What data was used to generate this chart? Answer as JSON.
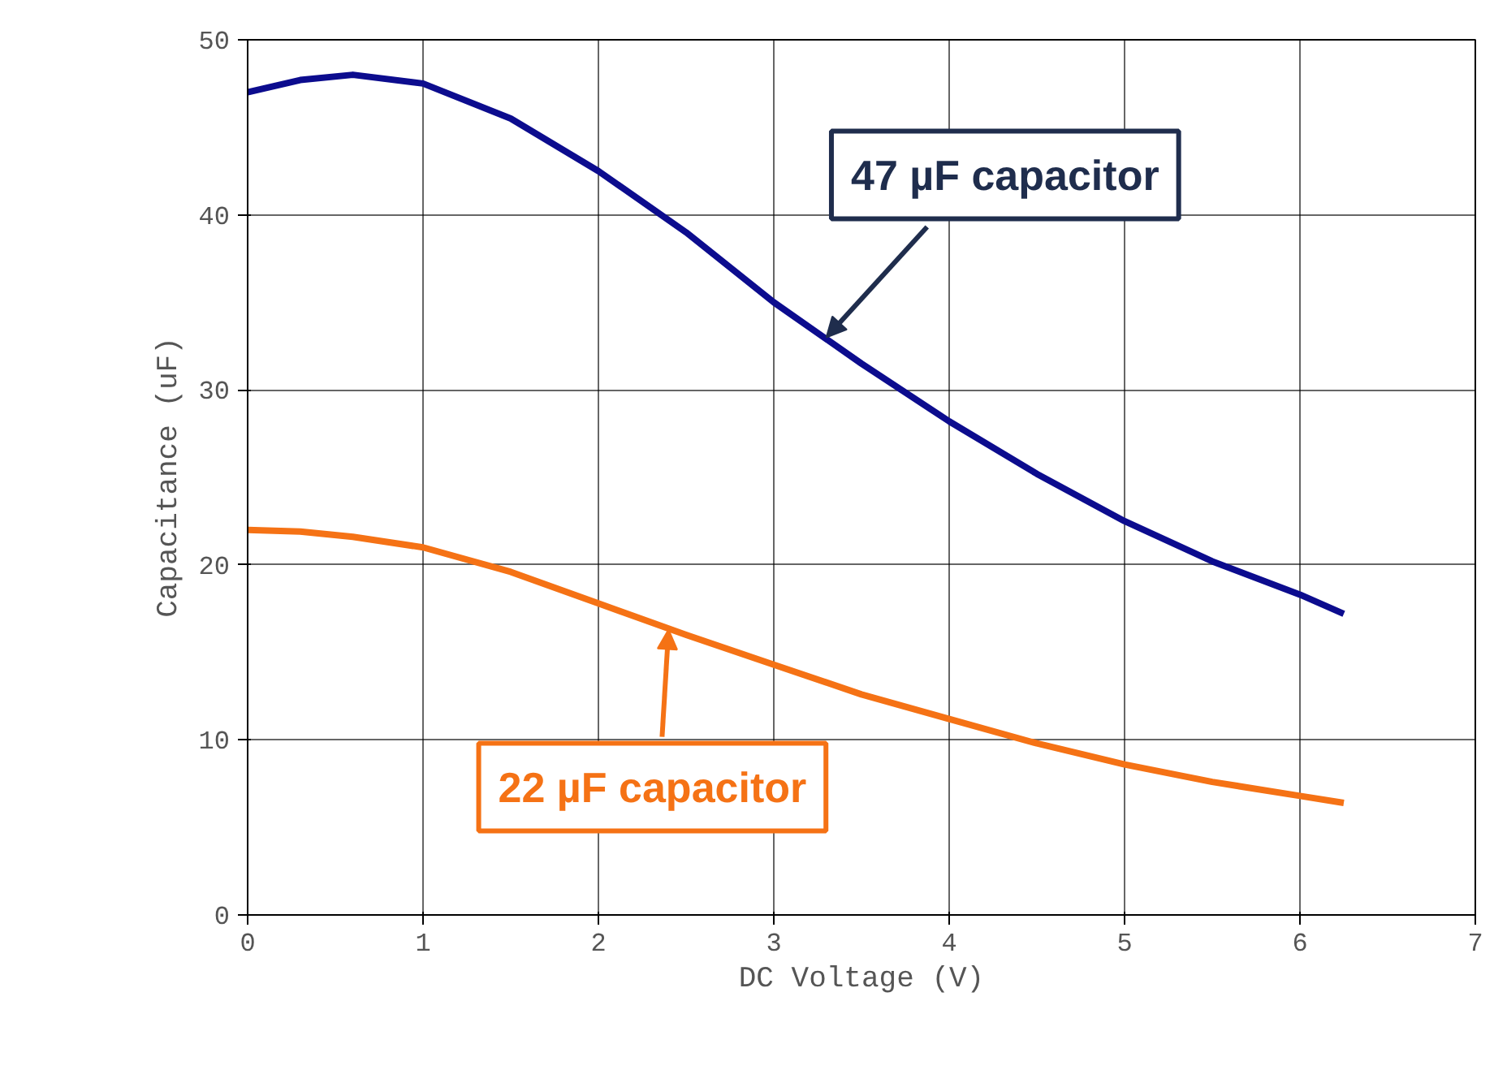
{
  "chart_data": {
    "type": "line",
    "xlabel": "DC Voltage (V)",
    "ylabel": "Capacitance (uF)",
    "x": [
      0,
      0.3,
      0.6,
      1,
      1.5,
      2,
      2.5,
      3,
      3.5,
      4,
      4.5,
      5,
      5.5,
      6,
      6.25
    ],
    "series": [
      {
        "color": "#0c0c8e",
        "values": [
          47,
          47.7,
          48,
          47.5,
          45.5,
          42.5,
          39,
          35,
          31.5,
          28.2,
          25.2,
          22.5,
          20.2,
          18.3,
          17.2
        ]
      },
      {
        "color": "#f57215",
        "values": [
          22,
          21.9,
          21.6,
          21,
          19.6,
          17.8,
          16,
          14.3,
          12.6,
          11.2,
          9.8,
          8.6,
          7.6,
          6.8,
          6.4
        ]
      }
    ],
    "annotations": [
      {
        "text": "47 µF capacitor",
        "x": 3.3,
        "y": 33
      },
      {
        "text": "22 µF capacitor",
        "x": 2.4,
        "y": 16.3
      }
    ],
    "xlim": [
      0,
      7
    ],
    "ylim": [
      0,
      50
    ],
    "xticks": [
      0,
      1,
      2,
      3,
      4,
      5,
      6,
      7
    ],
    "yticks": [
      0,
      10,
      20,
      30,
      40,
      50
    ],
    "grid": true,
    "marker": "none",
    "line_style": "solid"
  }
}
